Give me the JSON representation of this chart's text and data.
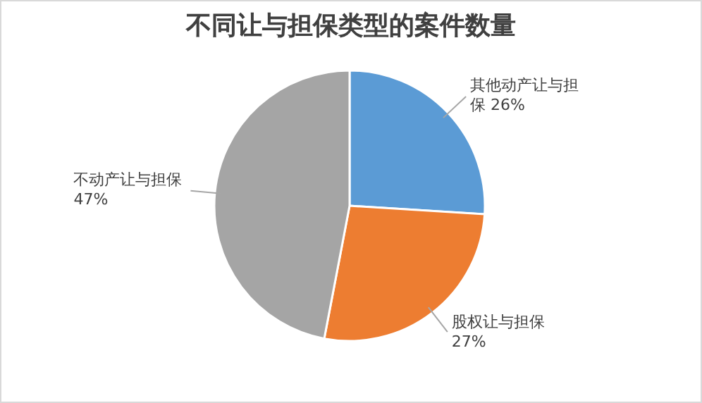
{
  "chart_data": {
    "type": "pie",
    "title": "不同让与担保类型的案件数量",
    "categories": [
      "其他动产让与担保",
      "股权让与担保",
      "不动产让与担保"
    ],
    "values": [
      26,
      27,
      47
    ],
    "colors": [
      "#5b9bd5",
      "#ed7d31",
      "#a5a5a5"
    ],
    "value_labels": [
      "26%",
      "27%",
      "47%"
    ]
  }
}
